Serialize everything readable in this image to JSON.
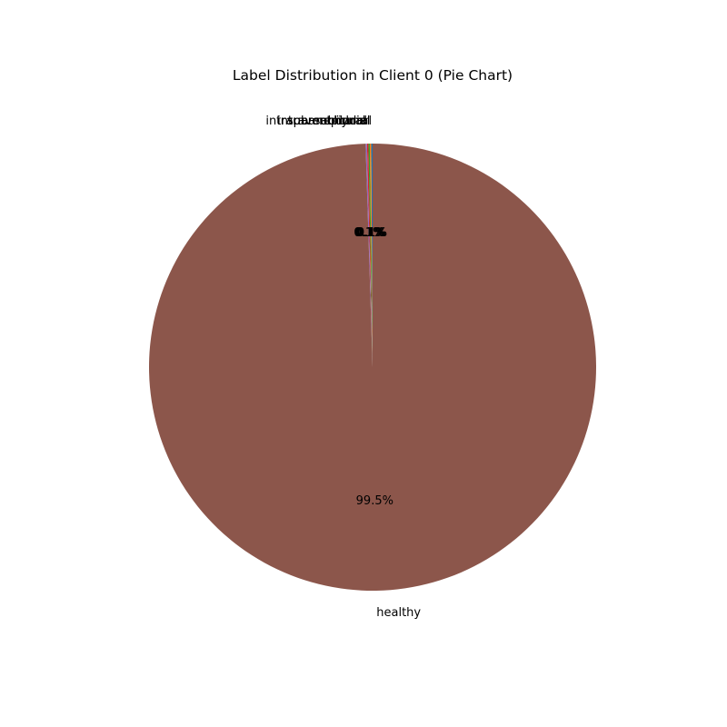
{
  "chart_data": {
    "type": "pie",
    "title": "Label Distribution in Client 0 (Pie Chart)",
    "autopct_format": "1dp",
    "start_angle_deg": 90,
    "direction": "counterclockwise",
    "slices": [
      {
        "label": "epidural",
        "value": 0.1,
        "color": "#1f77b4"
      },
      {
        "label": "intraparenchymal",
        "value": 0.1,
        "color": "#ff7f0e"
      },
      {
        "label": "intraventricular",
        "value": 0.1,
        "color": "#2ca02c"
      },
      {
        "label": "subarachnoid",
        "value": 0.1,
        "color": "#d62728"
      },
      {
        "label": "subdural",
        "value": 0.1,
        "color": "#9467bd"
      },
      {
        "label": "healthy",
        "value": 99.3,
        "color": "#8c564b"
      }
    ]
  }
}
